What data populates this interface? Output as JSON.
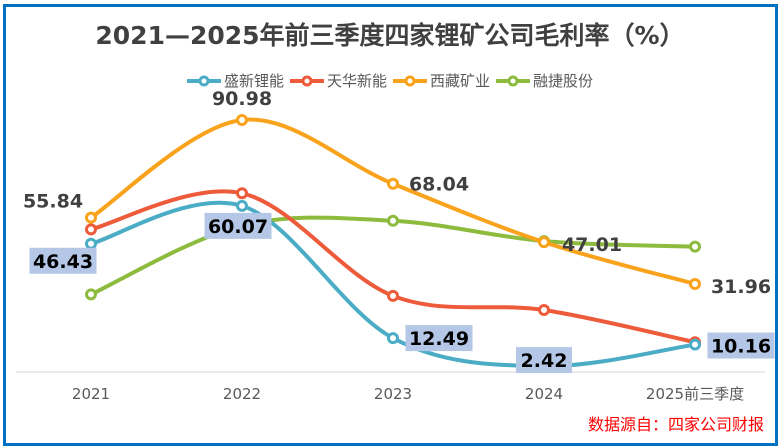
{
  "chart_data": {
    "type": "line",
    "title": "2021—2025年前三季度四家锂矿公司毛利率（%）",
    "categories": [
      "2021",
      "2022",
      "2023",
      "2024",
      "2025前三季度"
    ],
    "xlabel": "",
    "ylabel": "",
    "ylim": [
      0,
      100
    ],
    "grid": false,
    "smooth": true,
    "legend_position": "top",
    "series": [
      {
        "name": "盛新锂能",
        "color": "#4BACC6",
        "values": [
          46.43,
          60.07,
          12.49,
          2.42,
          10.16
        ],
        "labels": [
          "46.43",
          "60.07",
          "12.49",
          "2.42",
          "10.16"
        ],
        "label_style": "boxed"
      },
      {
        "name": "天华新能",
        "color": "#ED5B3A",
        "values": [
          51.6,
          64.6,
          27.7,
          22.6,
          11.0
        ],
        "labels": [
          null,
          null,
          null,
          null,
          null
        ],
        "label_style": "none"
      },
      {
        "name": "西藏矿业",
        "color": "#F9A21B",
        "values": [
          55.84,
          90.98,
          68.04,
          47.01,
          31.96
        ],
        "labels": [
          "55.84",
          "90.98",
          "68.04",
          "47.01",
          "31.96"
        ],
        "label_style": "plain"
      },
      {
        "name": "融捷股份",
        "color": "#8DBB3E",
        "values": [
          28.2,
          53.0,
          54.7,
          47.4,
          45.4
        ],
        "labels": [
          null,
          null,
          null,
          null,
          null
        ],
        "label_style": "none"
      }
    ]
  },
  "source_note": "数据源自：四家公司财报"
}
